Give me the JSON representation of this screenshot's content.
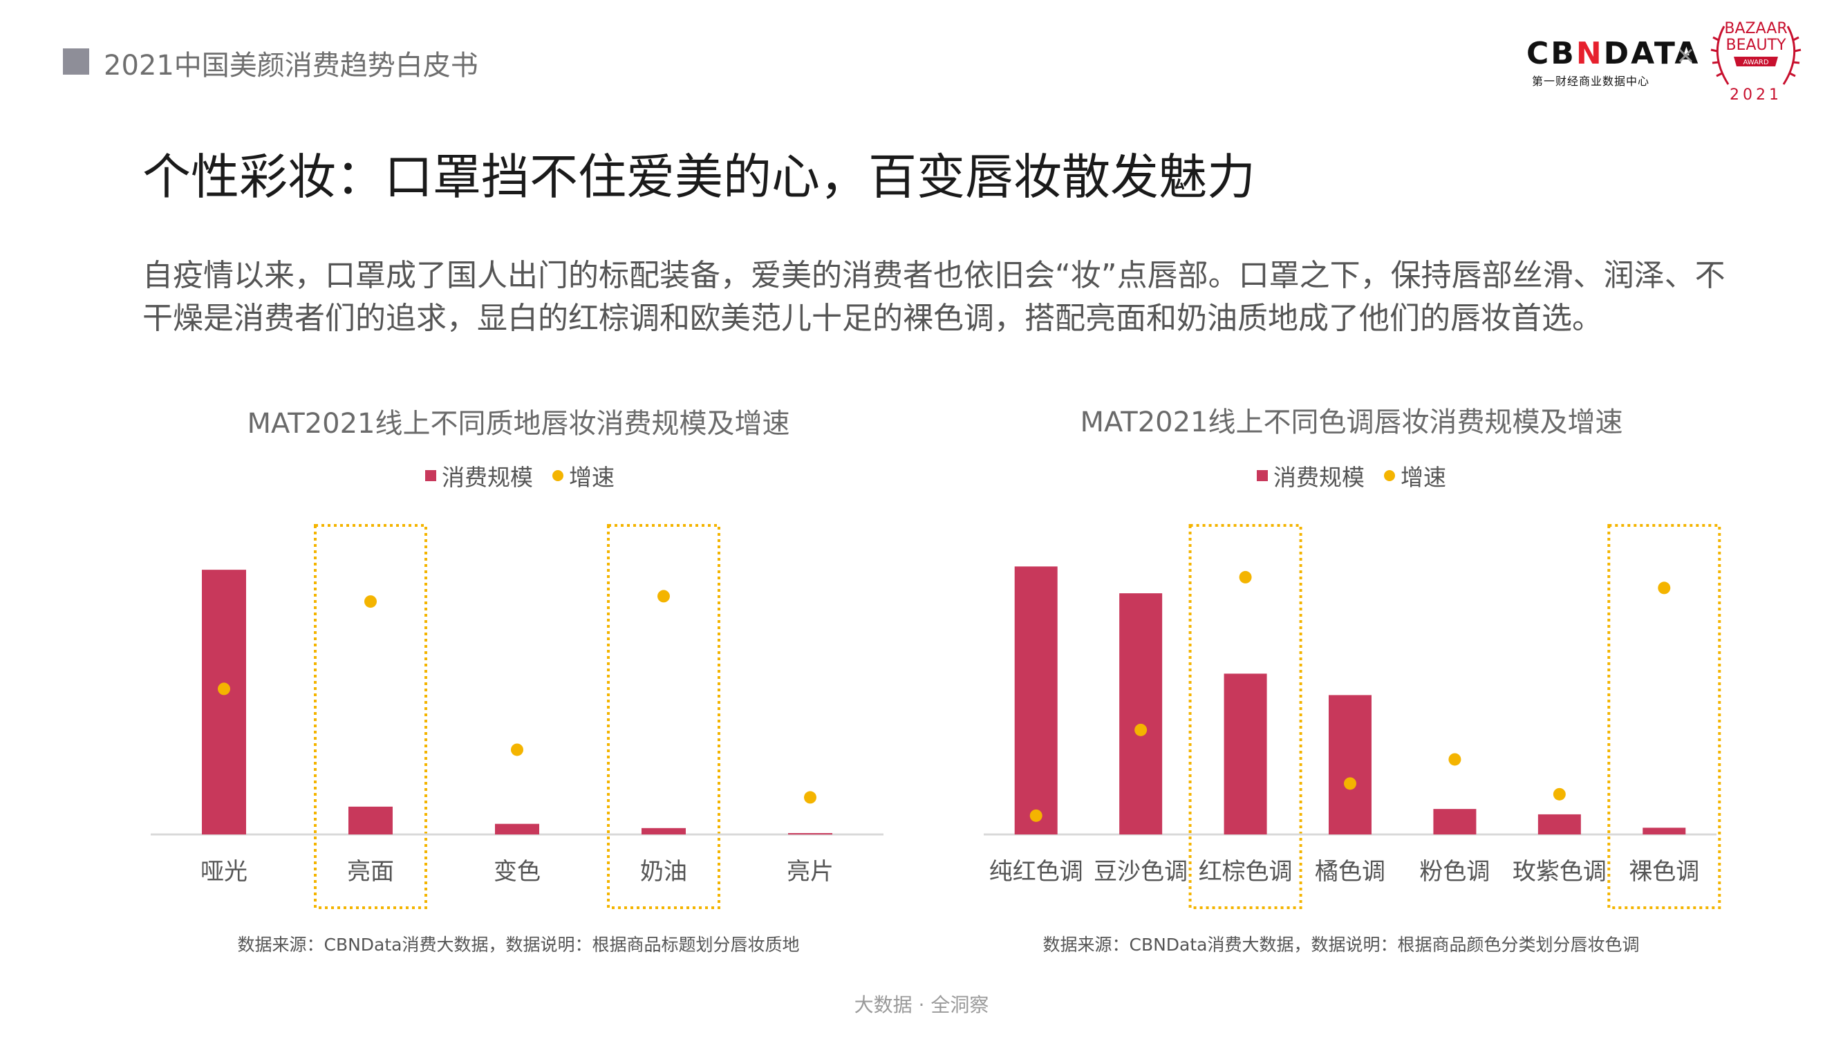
{
  "header": {
    "report_title": "2021中国美颜消费趋势白皮书",
    "cbn_logo": "CBNDATA",
    "cbn_sub": "第一财经商业数据中心",
    "times": "×",
    "badge_line1": "BAZAAR",
    "badge_line2": "BEAUTY",
    "badge_line3": "AWARD",
    "badge_year": "2021"
  },
  "page_title": "个性彩妆：口罩挡不住爱美的心，百变唇妆散发魅力",
  "intro_text": "自疫情以来，口罩成了国人出门的标配装备，爱美的消费者也依旧会“妆”点唇部。口罩之下，保持唇部丝滑、润泽、不干燥是消费者们的追求，显白的红棕调和欧美范儿十足的裸色调，搭配亮面和奶油质地成了他们的唇妆首选。",
  "legend": {
    "scale": "消费规模",
    "growth": "增速"
  },
  "colors": {
    "bar": "#c8385b",
    "dot": "#f4b400",
    "highlight": "#f4b400",
    "axis": "#d9d9d9"
  },
  "chart_data": [
    {
      "type": "bar",
      "title": "MAT2021线上不同质地唇妆消费规模及增速",
      "categories": [
        "哑光",
        "亮面",
        "变色",
        "奶油",
        "亮片"
      ],
      "series": [
        {
          "name": "消费规模",
          "type": "bar",
          "values": [
            100,
            10.5,
            4,
            2.4,
            0.5
          ]
        },
        {
          "name": "增速",
          "type": "scatter",
          "values": [
            55,
            88,
            32,
            90,
            14
          ]
        }
      ],
      "ylim": [
        0,
        105
      ],
      "y_axis_labels_shown": false,
      "highlighted_categories": [
        "亮面",
        "奶油"
      ],
      "source": "数据来源：CBNData消费大数据，数据说明：根据商品标题划分唇妆质地"
    },
    {
      "type": "bar",
      "title": "MAT2021线上不同色调唇妆消费规模及增速",
      "categories": [
        "纯红色调",
        "豆沙色调",
        "红棕色调",
        "橘色调",
        "粉色调",
        "玫紫色调",
        "裸色调"
      ],
      "series": [
        {
          "name": "消费规模",
          "type": "bar",
          "values": [
            100,
            90,
            60,
            52,
            9.5,
            7.5,
            2.5
          ]
        },
        {
          "name": "增速",
          "type": "scatter",
          "values": [
            7,
            39,
            96,
            19,
            28,
            15,
            92
          ]
        }
      ],
      "ylim": [
        0,
        105
      ],
      "y_axis_labels_shown": false,
      "highlighted_categories": [
        "红棕色调",
        "裸色调"
      ],
      "source": "数据来源：CBNData消费大数据，数据说明：根据商品颜色分类划分唇妆色调"
    }
  ],
  "footer_text": "大数据 · 全洞察"
}
